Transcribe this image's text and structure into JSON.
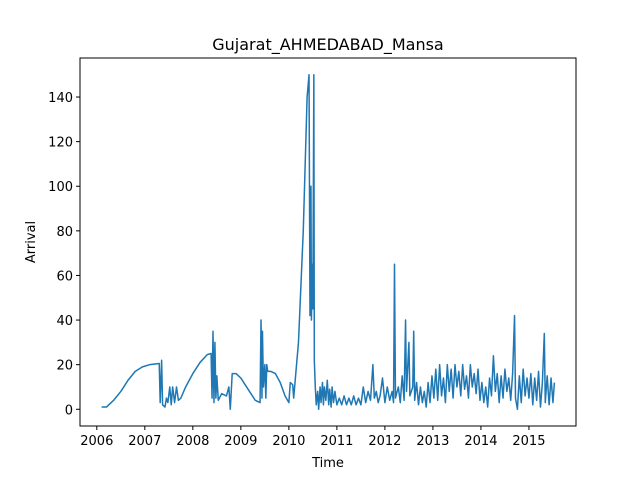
{
  "chart_data": {
    "type": "line",
    "title": "Gujarat_AHMEDABAD_Mansa",
    "x_label": "Time",
    "y_label": "Arrival",
    "xlim": [
      2005.65,
      2015.98
    ],
    "ylim": [
      -7.5,
      157.5
    ],
    "xticks": [
      2006,
      2007,
      2008,
      2009,
      2010,
      2011,
      2012,
      2013,
      2014,
      2015
    ],
    "yticks": [
      0,
      20,
      40,
      60,
      80,
      100,
      120,
      140
    ],
    "grid": false,
    "x": [
      2006.1,
      2006.2,
      2006.35,
      2006.5,
      2006.65,
      2006.8,
      2006.95,
      2007.1,
      2007.3,
      2007.32,
      2007.35,
      2007.37,
      2007.42,
      2007.45,
      2007.48,
      2007.52,
      2007.55,
      2007.58,
      2007.62,
      2007.66,
      2007.7,
      2007.75,
      2007.85,
      2008.0,
      2008.15,
      2008.3,
      2008.38,
      2008.4,
      2008.42,
      2008.44,
      2008.46,
      2008.48,
      2008.5,
      2008.53,
      2008.6,
      2008.7,
      2008.75,
      2008.78,
      2008.82,
      2008.9,
      2009.0,
      2009.15,
      2009.3,
      2009.4,
      2009.42,
      2009.44,
      2009.45,
      2009.47,
      2009.5,
      2009.52,
      2009.54,
      2009.56,
      2009.62,
      2009.72,
      2009.82,
      2009.92,
      2010.0,
      2010.03,
      2010.08,
      2010.1,
      2010.2,
      2010.3,
      2010.38,
      2010.42,
      2010.44,
      2010.46,
      2010.47,
      2010.49,
      2010.5,
      2010.52,
      2010.53,
      2010.55,
      2010.57,
      2010.6,
      2010.62,
      2010.65,
      2010.67,
      2010.7,
      2010.72,
      2010.74,
      2010.77,
      2010.8,
      2010.83,
      2010.85,
      2010.88,
      2010.9,
      2010.93,
      2010.96,
      2011.0,
      2011.05,
      2011.1,
      2011.15,
      2011.2,
      2011.25,
      2011.3,
      2011.35,
      2011.4,
      2011.45,
      2011.5,
      2011.55,
      2011.6,
      2011.65,
      2011.7,
      2011.75,
      2011.78,
      2011.82,
      2011.86,
      2011.9,
      2011.95,
      2012.0,
      2012.05,
      2012.1,
      2012.15,
      2012.18,
      2012.2,
      2012.22,
      2012.28,
      2012.32,
      2012.36,
      2012.4,
      2012.43,
      2012.45,
      2012.5,
      2012.52,
      2012.58,
      2012.6,
      2012.62,
      2012.66,
      2012.7,
      2012.74,
      2012.78,
      2012.82,
      2012.86,
      2012.9,
      2012.94,
      2012.98,
      2013.02,
      2013.06,
      2013.1,
      2013.14,
      2013.18,
      2013.22,
      2013.26,
      2013.3,
      2013.34,
      2013.38,
      2013.42,
      2013.46,
      2013.5,
      2013.54,
      2013.58,
      2013.62,
      2013.66,
      2013.7,
      2013.74,
      2013.78,
      2013.82,
      2013.86,
      2013.9,
      2013.94,
      2013.98,
      2014.02,
      2014.06,
      2014.1,
      2014.14,
      2014.18,
      2014.22,
      2014.26,
      2014.3,
      2014.34,
      2014.38,
      2014.42,
      2014.46,
      2014.5,
      2014.54,
      2014.58,
      2014.62,
      2014.66,
      2014.7,
      2014.72,
      2014.76,
      2014.8,
      2014.84,
      2014.88,
      2014.92,
      2014.96,
      2015.0,
      2015.04,
      2015.08,
      2015.12,
      2015.16,
      2015.2,
      2015.24,
      2015.28,
      2015.32,
      2015.34,
      2015.38,
      2015.42,
      2015.46,
      2015.5,
      2015.53
    ],
    "series": [
      {
        "color": "#1f77b4",
        "values": [
          1,
          1,
          4,
          8,
          13,
          17,
          19,
          20,
          20.5,
          3,
          22,
          2,
          1,
          5,
          3,
          10,
          2,
          10,
          3,
          10,
          4,
          5,
          10,
          16,
          21,
          24.5,
          25,
          5,
          35,
          3,
          30,
          5,
          15,
          4,
          7,
          6,
          10,
          0,
          16,
          16,
          14,
          9,
          4,
          3,
          40,
          5,
          35,
          10,
          20,
          5,
          20,
          17,
          17,
          16,
          12,
          6,
          3,
          12,
          11,
          5,
          30,
          80,
          140,
          150,
          42,
          100,
          40,
          65,
          45,
          150,
          22,
          10,
          2,
          8,
          0,
          10,
          3,
          12,
          2,
          10,
          4,
          13,
          2,
          9,
          1,
          10,
          3,
          8,
          2,
          5,
          2,
          6,
          2,
          5,
          2,
          6,
          2,
          5,
          2,
          10,
          3,
          8,
          4,
          20,
          5,
          8,
          3,
          6,
          14,
          3,
          10,
          4,
          8,
          3,
          65,
          5,
          10,
          3,
          15,
          4,
          40,
          8,
          30,
          6,
          10,
          35,
          4,
          12,
          2,
          10,
          3,
          8,
          1,
          12,
          3,
          15,
          5,
          18,
          4,
          20,
          6,
          14,
          3,
          20,
          8,
          18,
          5,
          20,
          10,
          17,
          6,
          20,
          9,
          15,
          5,
          20,
          10,
          16,
          7,
          18,
          4,
          12,
          3,
          10,
          1,
          14,
          6,
          24,
          8,
          16,
          3,
          15,
          5,
          18,
          8,
          14,
          4,
          16,
          42,
          5,
          0,
          15,
          3,
          18,
          6,
          14,
          5,
          16,
          2,
          14,
          4,
          17,
          1,
          12,
          34,
          3,
          15,
          2,
          14,
          3,
          12
        ]
      }
    ]
  }
}
